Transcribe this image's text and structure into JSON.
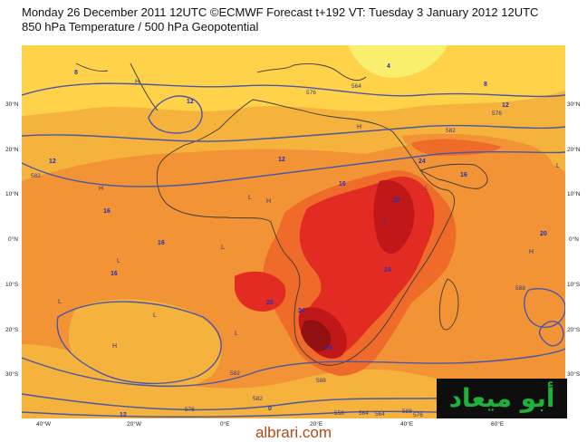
{
  "title": {
    "line1": "Monday 26 December 2011 12UTC ©ECMWF Forecast t+192 VT: Tuesday 3 January 2012 12UTC",
    "line2": "850 hPa Temperature / 500 hPa Geopotential"
  },
  "axes": {
    "lon_labels": [
      "40°W",
      "20°W",
      "0°E",
      "20°E",
      "40°E",
      "60°E"
    ],
    "lat_labels": [
      "30°N",
      "20°N",
      "10°N",
      "0°N",
      "10°S",
      "20°S",
      "30°S"
    ]
  },
  "isotherm_labels": [
    "4",
    "8",
    "8",
    "12",
    "12",
    "12",
    "12",
    "12",
    "16",
    "16",
    "16",
    "16",
    "16",
    "20",
    "20",
    "24",
    "24",
    "24",
    "24",
    "28",
    "0"
  ],
  "height_labels": [
    "576",
    "564",
    "576",
    "582",
    "582",
    "582",
    "558",
    "564",
    "588",
    "588",
    "588",
    "576",
    "576",
    "564",
    "582"
  ],
  "pressure_symbols": [
    "H",
    "H",
    "H",
    "H",
    "H",
    "H",
    "L",
    "L",
    "L",
    "L",
    "L",
    "L",
    "L",
    "L",
    "L"
  ],
  "colors": {
    "t4": "#f9ee6e",
    "t8": "#ffd24a",
    "t12": "#f5b23c",
    "t16": "#f29336",
    "t20": "#ee6b2a",
    "t24": "#e22b22",
    "t28": "#c01818",
    "t32": "#931012",
    "contour": "#4b57a6",
    "isotherm_label": "#2233bb"
  },
  "logo_text": "أبو ميعاد",
  "watermark": "albrari.com"
}
